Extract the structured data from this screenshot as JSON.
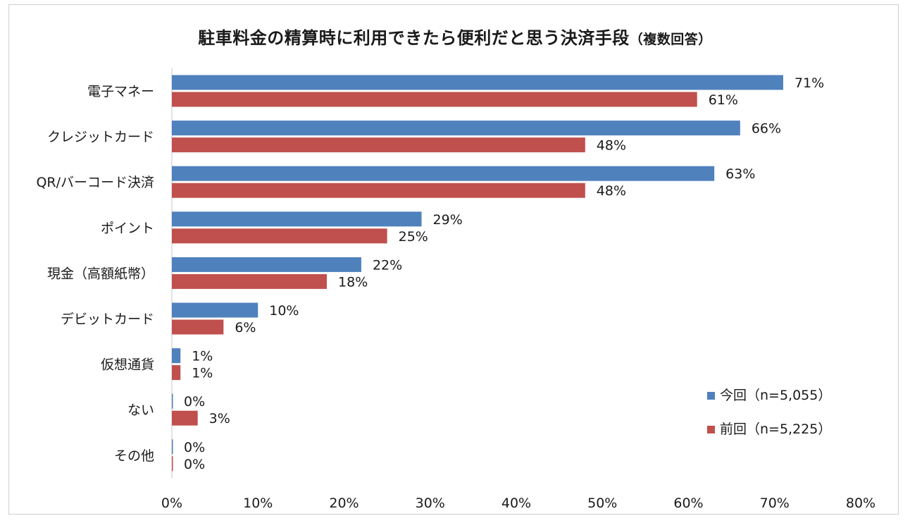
{
  "chart_data": {
    "type": "bar",
    "orientation": "horizontal",
    "title": "駐車料金の精算時に利用できたら便利だと思う決済手段",
    "title_suffix": "（複数回答）",
    "categories": [
      "電子マネー",
      "クレジットカード",
      "QR/バーコード決済",
      "ポイント",
      "現金（高額紙幣）",
      "デビットカード",
      "仮想通貨",
      "ない",
      "その他"
    ],
    "series": [
      {
        "name": "今回（n=5,055）",
        "color": "#4f81bd",
        "values": [
          71,
          66,
          63,
          29,
          22,
          10,
          1,
          0,
          0
        ],
        "labels": [
          "71%",
          "66%",
          "63%",
          "29%",
          "22%",
          "10%",
          "1%",
          "0%",
          "0%"
        ]
      },
      {
        "name": "前回（n=5,225）",
        "color": "#c0504d",
        "values": [
          61,
          48,
          48,
          25,
          18,
          6,
          1,
          3,
          0
        ],
        "labels": [
          "61%",
          "48%",
          "48%",
          "25%",
          "18%",
          "6%",
          "1%",
          "3%",
          "0%"
        ]
      }
    ],
    "xlim": [
      0,
      80
    ],
    "xticks": [
      0,
      10,
      20,
      30,
      40,
      50,
      60,
      70,
      80
    ],
    "xtick_labels": [
      "0%",
      "10%",
      "20%",
      "30%",
      "40%",
      "50%",
      "60%",
      "70%",
      "80%"
    ],
    "grid": false,
    "legend_position": "bottom-right"
  }
}
